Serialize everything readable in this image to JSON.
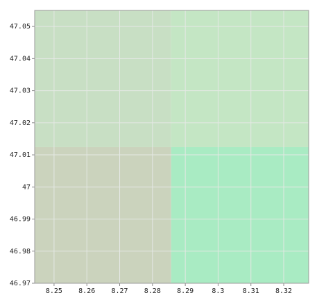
{
  "chart_data": {
    "type": "raster",
    "xlim": [
      8.2441,
      8.3276
    ],
    "ylim": [
      46.97,
      47.055
    ],
    "xticks": [
      8.25,
      8.26,
      8.27,
      8.28,
      8.29,
      8.3,
      8.31,
      8.32
    ],
    "yticks": [
      46.97,
      46.98,
      46.99,
      47,
      47.01,
      47.02,
      47.03,
      47.04,
      47.05
    ],
    "grid": true,
    "cells": [
      {
        "x": [
          8.2441,
          8.2857
        ],
        "y": [
          47.0124,
          47.055
        ],
        "color": "#c8dfc4"
      },
      {
        "x": [
          8.2857,
          8.3276
        ],
        "y": [
          47.0124,
          47.055
        ],
        "color": "#c4e6c4"
      },
      {
        "x": [
          8.2441,
          8.2857
        ],
        "y": [
          46.97,
          47.0124
        ],
        "color": "#cbd3bd"
      },
      {
        "x": [
          8.2857,
          8.3276
        ],
        "y": [
          46.97,
          47.0124
        ],
        "color": "#a9ebc3"
      }
    ]
  }
}
